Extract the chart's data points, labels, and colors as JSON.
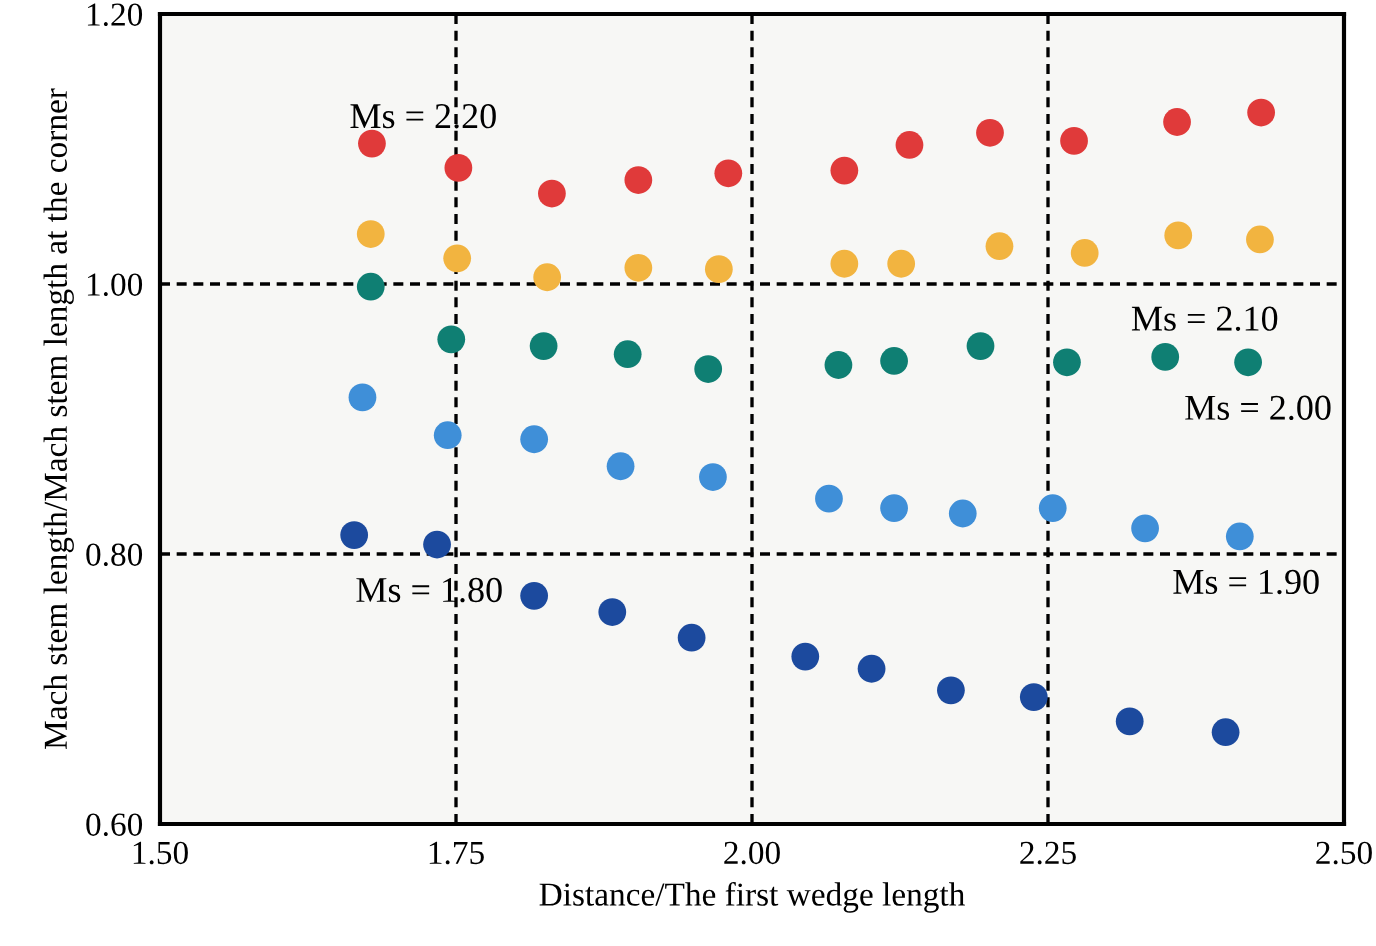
{
  "chart_data": {
    "type": "scatter",
    "xlabel": "Distance/The first wedge length",
    "ylabel": "Mach stem length/Mach stem length at the corner",
    "xlim": [
      1.5,
      2.5
    ],
    "xticks": [
      {
        "value": 1.5,
        "label": "1.50"
      },
      {
        "value": 1.75,
        "label": "1.75"
      },
      {
        "value": 2.0,
        "label": "2.00"
      },
      {
        "value": 2.25,
        "label": "2.25"
      },
      {
        "value": 2.5,
        "label": "2.50"
      }
    ],
    "ylim": [
      0.6,
      1.2
    ],
    "yticks": [
      {
        "value": 0.6,
        "label": "0.60"
      },
      {
        "value": 0.8,
        "label": "0.80"
      },
      {
        "value": 1.0,
        "label": "1.00"
      },
      {
        "value": 1.2,
        "label": "1.20"
      }
    ],
    "grid": true,
    "marker": "circle",
    "series": [
      {
        "color": "#e03a3a",
        "x": [
          1.679,
          1.752,
          1.831,
          1.904,
          1.98,
          2.078,
          2.133,
          2.201,
          2.272,
          2.359,
          2.43
        ],
        "values": [
          1.104,
          1.086,
          1.067,
          1.077,
          1.082,
          1.084,
          1.103,
          1.112,
          1.106,
          1.12,
          1.127
        ]
      },
      {
        "color": "#f2b440",
        "x": [
          1.678,
          1.751,
          1.827,
          1.904,
          1.972,
          2.078,
          2.126,
          2.209,
          2.281,
          2.36,
          2.429
        ],
        "values": [
          1.037,
          1.019,
          1.005,
          1.012,
          1.011,
          1.015,
          1.015,
          1.028,
          1.023,
          1.036,
          1.033
        ]
      },
      {
        "color": "#0f7f73",
        "x": [
          1.678,
          1.746,
          1.824,
          1.895,
          1.963,
          2.073,
          2.12,
          2.193,
          2.266,
          2.349,
          2.419
        ],
        "values": [
          0.998,
          0.959,
          0.954,
          0.948,
          0.937,
          0.94,
          0.943,
          0.954,
          0.942,
          0.946,
          0.942
        ]
      },
      {
        "color": "#3f8fd8",
        "x": [
          1.671,
          1.743,
          1.816,
          1.889,
          1.967,
          2.065,
          2.12,
          2.178,
          2.254,
          2.332,
          2.412
        ],
        "values": [
          0.916,
          0.888,
          0.885,
          0.865,
          0.857,
          0.841,
          0.834,
          0.83,
          0.834,
          0.819,
          0.813
        ]
      },
      {
        "color": "#1c4a9e",
        "x": [
          1.664,
          1.734,
          1.816,
          1.882,
          1.949,
          2.045,
          2.101,
          2.168,
          2.238,
          2.319,
          2.4
        ],
        "values": [
          0.814,
          0.807,
          0.769,
          0.757,
          0.738,
          0.724,
          0.715,
          0.699,
          0.694,
          0.676,
          0.668
        ]
      }
    ],
    "annotations": [
      "Ms = 2.20",
      "Ms = 2.10",
      "Ms = 2.00",
      "Ms = 1.80",
      "Ms = 1.90"
    ]
  }
}
